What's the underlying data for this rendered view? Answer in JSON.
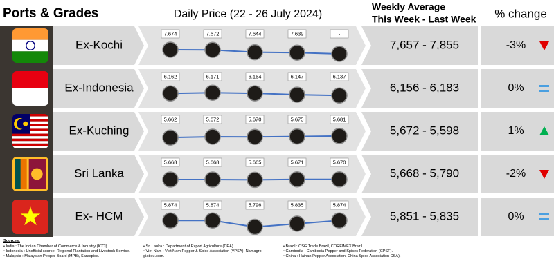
{
  "header": {
    "ports": "Ports & Grades",
    "daily": "Daily Price (22 - 26 July 2024)",
    "weekly_1": "Weekly Average",
    "weekly_2": "This Week - Last Week",
    "change": "% change"
  },
  "rows": [
    {
      "name": "Ex-Kochi",
      "prices": [
        {
          "value": 7.674,
          "label": "7.674"
        },
        {
          "value": 7.672,
          "label": "7.672"
        },
        {
          "value": 7.644,
          "label": "7.644"
        },
        {
          "value": 7.639,
          "label": "7.639"
        },
        {
          "value": null,
          "label": "-"
        }
      ],
      "weekly": "7,657 - 7,855",
      "change": "-3%",
      "trend": "down"
    },
    {
      "name": "Ex-Indonesia",
      "prices": [
        {
          "value": 6.162,
          "label": "6.162"
        },
        {
          "value": 6.171,
          "label": "6.171"
        },
        {
          "value": 6.164,
          "label": "6.164"
        },
        {
          "value": 6.147,
          "label": "6.147"
        },
        {
          "value": 6.137,
          "label": "6.137"
        }
      ],
      "weekly": "6,156 - 6,183",
      "change": "0%",
      "trend": "equal"
    },
    {
      "name": "Ex-Kuching",
      "prices": [
        {
          "value": 5.662,
          "label": "5.662"
        },
        {
          "value": 5.672,
          "label": "5.672"
        },
        {
          "value": 5.67,
          "label": "5.670"
        },
        {
          "value": 5.675,
          "label": "5.675"
        },
        {
          "value": 5.681,
          "label": "5.681"
        }
      ],
      "weekly": "5,672 - 5,598",
      "change": "1%",
      "trend": "up"
    },
    {
      "name": "Sri Lanka",
      "prices": [
        {
          "value": 5.668,
          "label": "5.668"
        },
        {
          "value": 5.668,
          "label": "5.668"
        },
        {
          "value": 5.665,
          "label": "5.665"
        },
        {
          "value": 5.671,
          "label": "5.671"
        },
        {
          "value": 5.67,
          "label": "5.670"
        }
      ],
      "weekly": "5,668 - 5,790",
      "change": "-2%",
      "trend": "down"
    },
    {
      "name": "Ex- HCM",
      "prices": [
        {
          "value": 5.874,
          "label": "5.874"
        },
        {
          "value": 5.874,
          "label": "5.874"
        },
        {
          "value": 5.796,
          "label": "5.796"
        },
        {
          "value": 5.835,
          "label": "5.835"
        },
        {
          "value": 5.874,
          "label": "5.874"
        }
      ],
      "weekly": "5,851 - 5,835",
      "change": "0%",
      "trend": "equal"
    }
  ],
  "sources": {
    "title": "Sources:",
    "columns": [
      [
        "India : The Indian Chamber of Commerce & Industry (ICCI)",
        "Indonesia : Unofficial source, Regional Plantation and Livestock Service.",
        "Malaysia : Malaysian Pepper Board (MPB), Saraspice."
      ],
      [
        "Sri Lanka : Department of Export Agriculture (DEA).",
        "Viet Nam : Viet Nam Pepper & Spice Association (VPSA). Namagro. giatieu.com."
      ],
      [
        "Brazil : CSG Trade Brazil, COREIMEX Brazil.",
        "Cambodia : Cambodia Pepper and Spices Federation (CPSF).",
        "China : Hainan Pepper Association, China Spice Association CSA)."
      ]
    ]
  }
}
